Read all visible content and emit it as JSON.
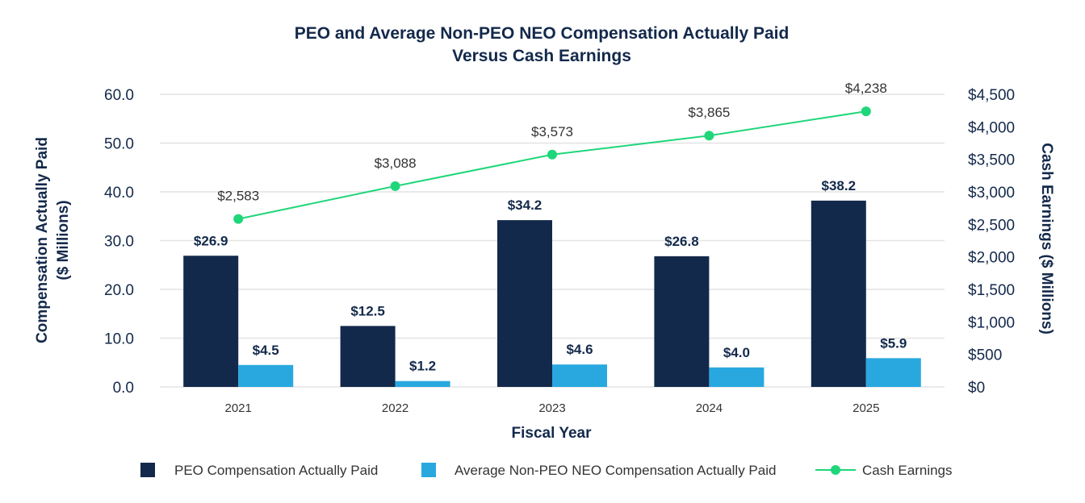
{
  "chart_data": {
    "type": "bar",
    "title": [
      "PEO and Average Non-PEO NEO Compensation Actually Paid",
      "Versus Cash Earnings"
    ],
    "xlabel": "Fiscal Year",
    "ylabel": [
      "Compensation Actually Paid",
      "($ Millions)"
    ],
    "y2label": "Cash Earnings ($ Millions)",
    "categories": [
      "2021",
      "2022",
      "2023",
      "2024",
      "2025"
    ],
    "ylim": [
      0,
      60
    ],
    "y2lim": [
      0,
      4500
    ],
    "yticks": [
      "0.0",
      "10.0",
      "20.0",
      "30.0",
      "40.0",
      "50.0",
      "60.0"
    ],
    "y2ticks": [
      "$0",
      "$500",
      "$1,000",
      "$1,500",
      "$2,000",
      "$2,500",
      "$3,000",
      "$3,500",
      "$4,000",
      "$4,500"
    ],
    "legend_position": "bottom",
    "series": [
      {
        "name": "PEO Compensation Actually Paid",
        "type": "bar",
        "axis": "left",
        "color": "#13294B",
        "values": [
          26.9,
          12.5,
          34.2,
          26.8,
          38.2
        ],
        "labels": [
          "$26.9",
          "$12.5",
          "$34.2",
          "$26.8",
          "$38.2"
        ]
      },
      {
        "name": "Average Non-PEO NEO Compensation Actually Paid",
        "type": "bar",
        "axis": "left",
        "color": "#29A8E0",
        "values": [
          4.5,
          1.2,
          4.6,
          4.0,
          5.9
        ],
        "labels": [
          "$4.5",
          "$1.2",
          "$4.6",
          "$4.0",
          "$5.9"
        ]
      },
      {
        "name": "Cash Earnings",
        "type": "line",
        "axis": "right",
        "color": "#1FD67A",
        "values": [
          2583,
          3088,
          3573,
          3865,
          4238
        ],
        "labels": [
          "$2,583",
          "$3,088",
          "$3,573",
          "$3,865",
          "$4,238"
        ]
      }
    ]
  }
}
